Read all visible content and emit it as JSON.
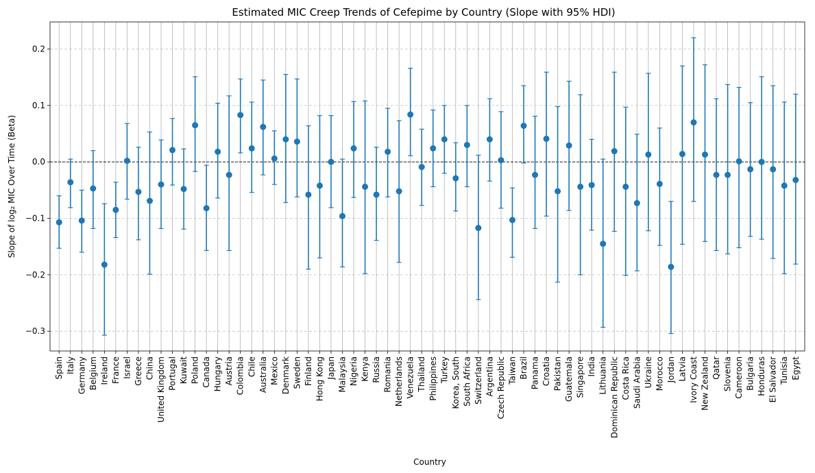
{
  "chart_data": {
    "type": "scatter",
    "title": "Estimated MIC Creep Trends of Cefepime by Country (Slope with 95% HDI)",
    "xlabel": "Country",
    "ylabel": "Slope of log₂ MIC Over Time (Beta)",
    "ylim": [
      -0.335,
      0.248
    ],
    "yticks": [
      -0.3,
      -0.2,
      -0.1,
      0.0,
      0.1,
      0.2
    ],
    "ytick_labels": [
      "−0.3",
      "−0.2",
      "−0.1",
      "0.0",
      "0.1",
      "0.2"
    ],
    "grid": true,
    "reference_line": 0.0,
    "color": "#1f77b4",
    "categories": [
      "Spain",
      "Italy",
      "Germany",
      "Belgium",
      "Ireland",
      "France",
      "Israel",
      "Greece",
      "China",
      "United Kingdom",
      "Portugal",
      "Kuwait",
      "Poland",
      "Canada",
      "Hungary",
      "Austria",
      "Colombia",
      "Chile",
      "Australia",
      "Mexico",
      "Denmark",
      "Sweden",
      "Finland",
      "Hong Kong",
      "Japan",
      "Malaysia",
      "Nigeria",
      "Kenya",
      "Russia",
      "Romania",
      "Netherlands",
      "Venezuela",
      "Thailand",
      "Philippines",
      "Turkey",
      "Korea, South",
      "South Africa",
      "Switzerland",
      "Argentina",
      "Czech Republic",
      "Taiwan",
      "Brazil",
      "Panama",
      "Croatia",
      "Pakistan",
      "Guatemala",
      "Singapore",
      "India",
      "Lithuania",
      "Dominican Republic",
      "Costa Rica",
      "Saudi Arabia",
      "Ukraine",
      "Morocco",
      "Jordan",
      "Latvia",
      "Ivory Coast",
      "New Zealand",
      "Qatar",
      "Slovenia",
      "Cameroon",
      "Bulgaria",
      "Honduras",
      "El Salvador",
      "Tunisia",
      "Egypt"
    ],
    "values": [
      -0.107,
      -0.036,
      -0.104,
      -0.047,
      -0.182,
      -0.085,
      0.002,
      -0.053,
      -0.069,
      -0.04,
      0.021,
      -0.048,
      0.065,
      -0.082,
      0.018,
      -0.023,
      0.083,
      0.024,
      0.062,
      0.006,
      0.04,
      0.036,
      -0.058,
      -0.042,
      0.0,
      -0.096,
      0.024,
      -0.044,
      -0.058,
      0.018,
      -0.052,
      0.084,
      -0.009,
      0.024,
      0.04,
      -0.029,
      0.03,
      -0.117,
      0.04,
      0.003,
      -0.103,
      0.064,
      -0.023,
      0.041,
      -0.052,
      0.029,
      -0.044,
      -0.041,
      -0.145,
      0.019,
      -0.044,
      -0.073,
      0.013,
      -0.039,
      -0.186,
      0.014,
      0.07,
      0.013,
      -0.023,
      -0.023,
      0.001,
      -0.013,
      0.0,
      -0.013,
      -0.042,
      -0.032
    ],
    "lower": [
      -0.153,
      -0.081,
      -0.16,
      -0.118,
      -0.307,
      -0.134,
      -0.066,
      -0.138,
      -0.199,
      -0.118,
      -0.041,
      -0.119,
      -0.017,
      -0.157,
      -0.064,
      -0.157,
      0.016,
      -0.054,
      -0.023,
      -0.04,
      -0.072,
      -0.062,
      -0.19,
      -0.17,
      -0.081,
      -0.186,
      -0.063,
      -0.198,
      -0.139,
      -0.062,
      -0.178,
      0.011,
      -0.077,
      -0.044,
      -0.02,
      -0.087,
      -0.044,
      -0.244,
      -0.034,
      -0.082,
      -0.169,
      -0.002,
      -0.118,
      -0.096,
      -0.213,
      -0.086,
      -0.2,
      -0.121,
      -0.293,
      -0.123,
      -0.201,
      -0.193,
      -0.122,
      -0.148,
      -0.304,
      -0.146,
      -0.07,
      -0.141,
      -0.157,
      -0.163,
      -0.152,
      -0.132,
      -0.137,
      -0.171,
      -0.198,
      -0.181
    ],
    "upper": [
      -0.06,
      0.005,
      -0.05,
      0.02,
      -0.074,
      -0.036,
      0.068,
      0.026,
      0.053,
      0.039,
      0.077,
      0.023,
      0.151,
      -0.006,
      0.104,
      0.117,
      0.147,
      0.106,
      0.145,
      0.055,
      0.155,
      0.147,
      0.064,
      0.082,
      0.082,
      0.005,
      0.107,
      0.108,
      0.026,
      0.095,
      0.073,
      0.166,
      0.058,
      0.092,
      0.1,
      0.034,
      0.1,
      0.012,
      0.112,
      0.089,
      -0.046,
      0.135,
      0.081,
      0.159,
      0.098,
      0.143,
      0.119,
      0.04,
      0.005,
      0.159,
      0.097,
      0.049,
      0.157,
      0.06,
      -0.07,
      0.17,
      0.22,
      0.172,
      0.112,
      0.137,
      0.132,
      0.105,
      0.151,
      0.135,
      0.106,
      0.12
    ]
  }
}
